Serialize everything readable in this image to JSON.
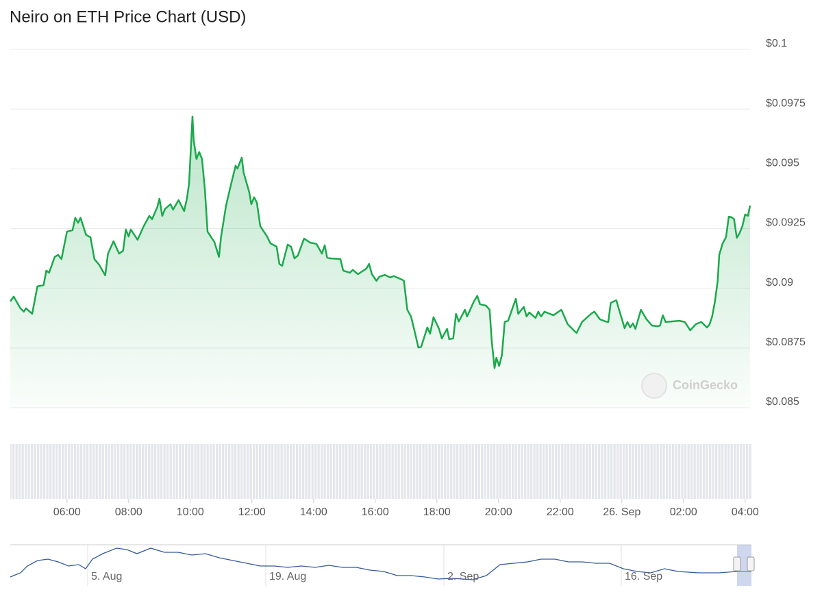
{
  "chart_data": {
    "type": "line",
    "title": "Neiro on ETH Price Chart (USD)",
    "x": [
      4.16,
      4.27,
      4.49,
      4.6,
      4.67,
      4.87,
      5.04,
      5.24,
      5.33,
      5.42,
      5.6,
      5.71,
      5.82,
      6,
      6.18,
      6.27,
      6.36,
      6.44,
      6.62,
      6.76,
      6.89,
      7.04,
      7.24,
      7.33,
      7.51,
      7.69,
      7.82,
      7.91,
      8,
      8.07,
      8.29,
      8.49,
      8.67,
      8.76,
      8.93,
      9,
      9.09,
      9.18,
      9.36,
      9.44,
      9.62,
      9.8,
      9.89,
      9.96,
      10.02,
      10.07,
      10.11,
      10.2,
      10.29,
      10.38,
      10.47,
      10.56,
      10.78,
      10.93,
      11,
      11.16,
      11.29,
      11.47,
      11.53,
      11.67,
      11.73,
      11.91,
      11.98,
      12.07,
      12.16,
      12.27,
      12.49,
      12.6,
      12.8,
      12.89,
      12.98,
      13.16,
      13.27,
      13.38,
      13.49,
      13.69,
      13.89,
      14.09,
      14.27,
      14.36,
      14.44,
      14.56,
      14.87,
      14.96,
      15.18,
      15.27,
      15.44,
      15.71,
      15.8,
      15.89,
      16.04,
      16.13,
      16.31,
      16.49,
      16.6,
      16.87,
      16.93,
      17.04,
      17.16,
      17.27,
      17.4,
      17.49,
      17.69,
      17.78,
      17.89,
      18.07,
      18.16,
      18.33,
      18.4,
      18.53,
      18.62,
      18.71,
      18.91,
      18.98,
      19.2,
      19.31,
      19.4,
      19.6,
      19.71,
      19.78,
      19.87,
      19.93,
      20.02,
      20.11,
      20.2,
      20.31,
      20.56,
      20.64,
      20.82,
      20.91,
      21,
      21.2,
      21.29,
      21.38,
      21.49,
      21.78,
      22.04,
      22.24,
      22.44,
      22.53,
      22.71,
      23,
      23.11,
      23.29,
      23.47,
      23.56,
      23.64,
      23.82,
      23.91,
      24.09,
      24.18,
      24.27,
      24.36,
      24.44,
      24.62,
      24.8,
      24.98,
      25.16,
      25.24,
      25.33,
      25.42,
      25.87,
      26.04,
      26.22,
      26.4,
      26.58,
      26.76,
      26.84,
      26.93,
      27.02,
      27.11,
      27.16,
      27.27,
      27.38,
      27.47,
      27.56,
      27.64,
      27.73,
      27.82,
      27.91,
      28,
      28.09,
      28.16
    ],
    "values": [
      0.08922,
      0.08942,
      0.08893,
      0.08879,
      0.08893,
      0.0887,
      0.08985,
      0.0899,
      0.09051,
      0.09042,
      0.09108,
      0.09117,
      0.09099,
      0.09214,
      0.0922,
      0.09272,
      0.09251,
      0.09272,
      0.092,
      0.09191,
      0.09099,
      0.09076,
      0.09031,
      0.09122,
      0.09174,
      0.09122,
      0.09134,
      0.09223,
      0.09194,
      0.09223,
      0.0918,
      0.09237,
      0.0928,
      0.09266,
      0.09317,
      0.09352,
      0.0928,
      0.09309,
      0.09329,
      0.09306,
      0.09346,
      0.093,
      0.09352,
      0.09415,
      0.09567,
      0.09696,
      0.09596,
      0.09518,
      0.09547,
      0.09518,
      0.09395,
      0.09214,
      0.09171,
      0.09108,
      0.09194,
      0.09323,
      0.09395,
      0.0949,
      0.09478,
      0.09524,
      0.09461,
      0.0938,
      0.09329,
      0.09358,
      0.09335,
      0.09237,
      0.09194,
      0.09165,
      0.09151,
      0.09079,
      0.09071,
      0.0916,
      0.09151,
      0.09102,
      0.09114,
      0.09185,
      0.09168,
      0.09163,
      0.09122,
      0.09157,
      0.09105,
      0.09102,
      0.09099,
      0.09051,
      0.09042,
      0.09054,
      0.09036,
      0.09059,
      0.09079,
      0.09036,
      0.09008,
      0.09025,
      0.09033,
      0.09022,
      0.09028,
      0.09013,
      0.09008,
      0.08887,
      0.08859,
      0.08801,
      0.08729,
      0.08732,
      0.08813,
      0.08787,
      0.08856,
      0.08807,
      0.08767,
      0.08807,
      0.08764,
      0.08767,
      0.0887,
      0.08838,
      0.08887,
      0.08859,
      0.08922,
      0.08945,
      0.0891,
      0.08904,
      0.08887,
      0.08755,
      0.08643,
      0.08686,
      0.08652,
      0.08698,
      0.08836,
      0.08841,
      0.08933,
      0.0887,
      0.08899,
      0.08859,
      0.08876,
      0.08853,
      0.08879,
      0.08859,
      0.08879,
      0.08864,
      0.08887,
      0.08827,
      0.08801,
      0.0879,
      0.08836,
      0.0887,
      0.08879,
      0.08847,
      0.08838,
      0.08836,
      0.08916,
      0.08927,
      0.08887,
      0.0881,
      0.08836,
      0.08813,
      0.0883,
      0.08807,
      0.08887,
      0.08847,
      0.08821,
      0.08818,
      0.08821,
      0.08864,
      0.08836,
      0.08841,
      0.08836,
      0.08801,
      0.08827,
      0.08836,
      0.08813,
      0.08824,
      0.08859,
      0.08922,
      0.09008,
      0.09117,
      0.09165,
      0.09191,
      0.09277,
      0.09274,
      0.09266,
      0.09188,
      0.09208,
      0.09237,
      0.09286,
      0.0928,
      0.09323
    ],
    "color": "#1aa94b",
    "xlim": [
      4.16,
      28.16
    ],
    "xticks": [
      {
        "value": 6,
        "label": "06:00"
      },
      {
        "value": 8,
        "label": "08:00"
      },
      {
        "value": 10,
        "label": "10:00"
      },
      {
        "value": 12,
        "label": "12:00"
      },
      {
        "value": 14,
        "label": "14:00"
      },
      {
        "value": 16,
        "label": "16:00"
      },
      {
        "value": 18,
        "label": "18:00"
      },
      {
        "value": 20,
        "label": "20:00"
      },
      {
        "value": 22,
        "label": "22:00"
      },
      {
        "value": 24,
        "label": "26. Sep"
      },
      {
        "value": 26,
        "label": "02:00"
      },
      {
        "value": 28,
        "label": "04:00"
      }
    ],
    "ylim": [
      0.085,
      0.1
    ],
    "yticks": [
      {
        "value": 0.085,
        "label": "$0.085"
      },
      {
        "value": 0.0875,
        "label": "$0.0875"
      },
      {
        "value": 0.09,
        "label": "$0.09"
      },
      {
        "value": 0.0925,
        "label": "$0.0925"
      },
      {
        "value": 0.095,
        "label": "$0.095"
      },
      {
        "value": 0.0975,
        "label": "$0.0975"
      },
      {
        "value": 0.1,
        "label": "$0.1"
      }
    ],
    "grid": true
  },
  "watermark": "CoinGecko",
  "navigator": {
    "labels": [
      "5. Aug",
      "19. Aug",
      "2. Sep",
      "16. Sep"
    ]
  }
}
